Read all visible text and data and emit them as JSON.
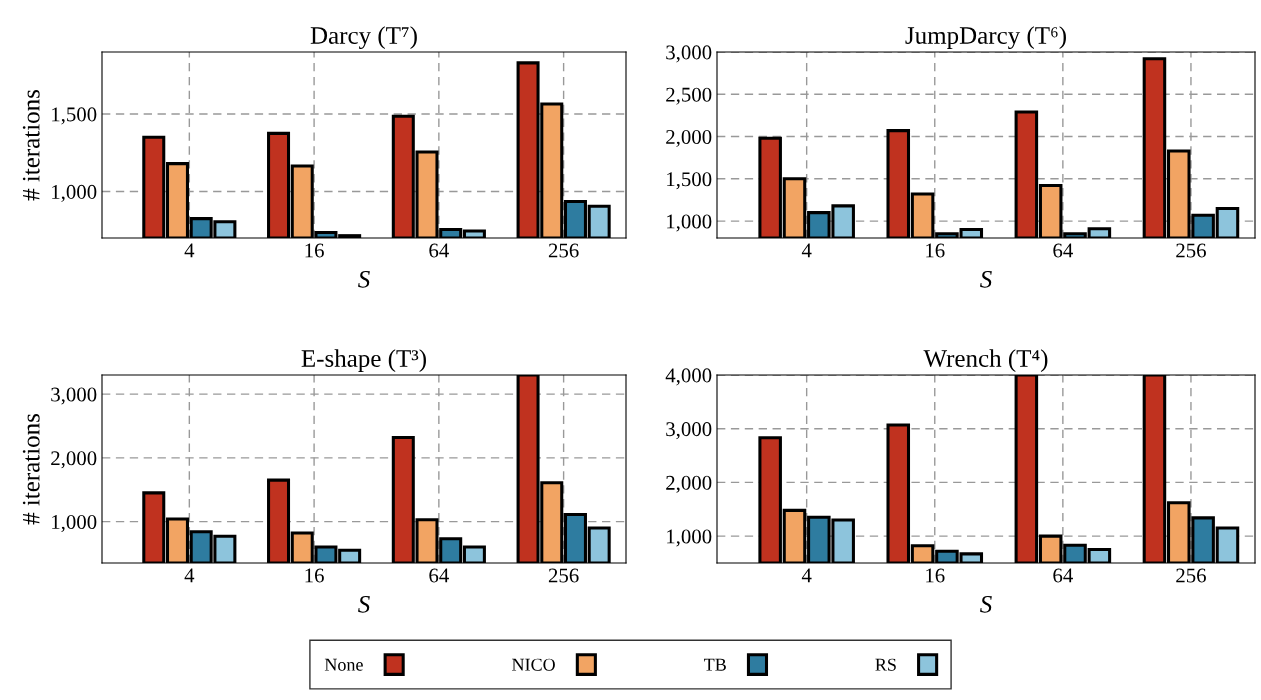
{
  "chart_data": [
    {
      "type": "bar",
      "title": "Darcy (T⁷)",
      "xlabel": "S",
      "ylabel": "# iterations",
      "categories": [
        "4",
        "16",
        "64",
        "256"
      ],
      "series": [
        {
          "color": "#c0321f",
          "values": [
            1350,
            1375,
            1485,
            1830
          ]
        },
        {
          "color": "#f2a463",
          "values": [
            1180,
            1165,
            1255,
            1565
          ]
        },
        {
          "color": "#2e7ca0",
          "values": [
            825,
            735,
            755,
            935
          ]
        },
        {
          "color": "#8dc4dc",
          "values": [
            805,
            715,
            745,
            905
          ]
        }
      ],
      "ylim": [
        700,
        1900
      ],
      "yticks": [
        {
          "value": 1000,
          "label": "1,000"
        },
        {
          "value": 1500,
          "label": "1,500"
        }
      ],
      "grid": true
    },
    {
      "type": "bar",
      "title": "JumpDarcy (T⁶)",
      "xlabel": "S",
      "categories": [
        "4",
        "16",
        "64",
        "256"
      ],
      "series": [
        {
          "color": "#c0321f",
          "values": [
            1980,
            2070,
            2290,
            2920
          ]
        },
        {
          "color": "#f2a463",
          "values": [
            1500,
            1320,
            1420,
            1830
          ]
        },
        {
          "color": "#2e7ca0",
          "values": [
            1100,
            850,
            850,
            1070
          ]
        },
        {
          "color": "#8dc4dc",
          "values": [
            1180,
            900,
            910,
            1150
          ]
        }
      ],
      "ylim": [
        800,
        3000
      ],
      "yticks": [
        {
          "value": 1000,
          "label": "1,000"
        },
        {
          "value": 1500,
          "label": "1,500"
        },
        {
          "value": 2000,
          "label": "2,000"
        },
        {
          "value": 2500,
          "label": "2,500"
        },
        {
          "value": 3000,
          "label": "3,000"
        }
      ],
      "grid": true
    },
    {
      "type": "bar",
      "title": "E-shape (T³)",
      "xlabel": "S",
      "ylabel": "# iterations",
      "categories": [
        "4",
        "16",
        "64",
        "256"
      ],
      "series": [
        {
          "color": "#c0321f",
          "values": [
            1450,
            1650,
            2320,
            3300
          ]
        },
        {
          "color": "#f2a463",
          "values": [
            1040,
            820,
            1030,
            1610
          ]
        },
        {
          "color": "#2e7ca0",
          "values": [
            840,
            600,
            730,
            1110
          ]
        },
        {
          "color": "#8dc4dc",
          "values": [
            770,
            550,
            600,
            900
          ]
        }
      ],
      "ylim": [
        350,
        3300
      ],
      "yticks": [
        {
          "value": 1000,
          "label": "1,000"
        },
        {
          "value": 2000,
          "label": "2,000"
        },
        {
          "value": 3000,
          "label": "3,000"
        }
      ],
      "grid": true
    },
    {
      "type": "bar",
      "title": "Wrench (T⁴)",
      "xlabel": "S",
      "categories": [
        "4",
        "16",
        "64",
        "256"
      ],
      "series": [
        {
          "name": "None",
          "color": "#c0321f",
          "values": [
            2830,
            3070,
            4000,
            4000
          ]
        },
        {
          "name": "NICO",
          "color": "#f2a463",
          "values": [
            1480,
            820,
            1000,
            1620
          ]
        },
        {
          "name": "TB",
          "color": "#2e7ca0",
          "values": [
            1350,
            720,
            830,
            1340
          ]
        },
        {
          "name": "RS",
          "color": "#8dc4dc",
          "values": [
            1300,
            670,
            750,
            1150
          ]
        }
      ],
      "ylim": [
        500,
        4000
      ],
      "yticks": [
        {
          "value": 1000,
          "label": "1,000"
        },
        {
          "value": 2000,
          "label": "2,000"
        },
        {
          "value": 3000,
          "label": "3,000"
        },
        {
          "value": 4000,
          "label": "4,000"
        }
      ],
      "grid": true,
      "legend": "bottom"
    }
  ]
}
